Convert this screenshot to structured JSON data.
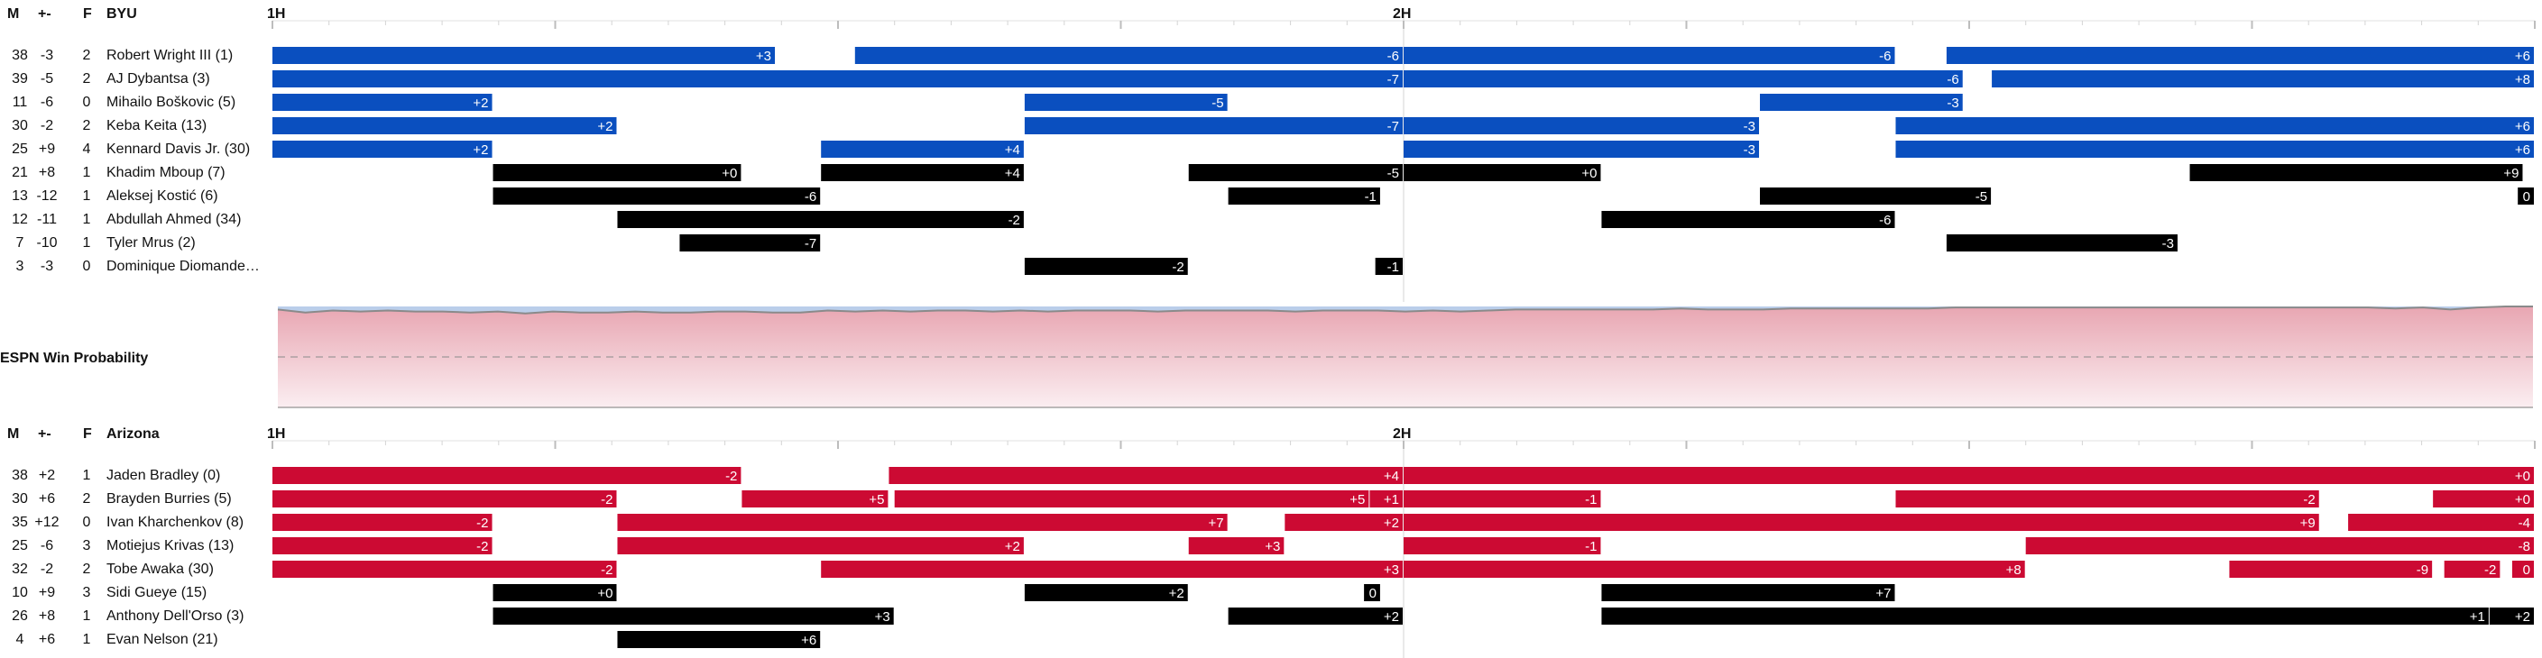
{
  "chart_data": {
    "type": "player-stint-timeline",
    "periods": [
      "1H",
      "2H"
    ],
    "axis": {
      "minutes_total": 40,
      "half_length": 20
    },
    "columns": {
      "minutes": "M",
      "plus_minus": "+-",
      "fouls": "F"
    },
    "colors": {
      "BYU": "#0a4fbf",
      "Arizona": "#cc0a33",
      "bench": "#000000",
      "wp_blue": "#c5d6ee",
      "wp_red": "#e8a6b2",
      "wp_line": "#8a8a8a"
    },
    "win_probability": {
      "label": "ESPN Win Probability",
      "arizona_prob": [
        0.97,
        0.94,
        0.96,
        0.95,
        0.96,
        0.95,
        0.95,
        0.94,
        0.95,
        0.93,
        0.95,
        0.94,
        0.94,
        0.95,
        0.94,
        0.94,
        0.95,
        0.95,
        0.94,
        0.94,
        0.96,
        0.95,
        0.96,
        0.95,
        0.96,
        0.96,
        0.95,
        0.96,
        0.95,
        0.96,
        0.96,
        0.96,
        0.95,
        0.96,
        0.96,
        0.96,
        0.96,
        0.95,
        0.96,
        0.96,
        0.96,
        0.95,
        0.96,
        0.95,
        0.96,
        0.97,
        0.97,
        0.97,
        0.97,
        0.97,
        0.97,
        0.98,
        0.97,
        0.97,
        0.97,
        0.98,
        0.98,
        0.98,
        0.98,
        0.98,
        0.98,
        0.99,
        0.99,
        0.99,
        0.99,
        0.99,
        0.99,
        0.99,
        0.99,
        0.99,
        0.99,
        0.99,
        0.99,
        0.99,
        0.99,
        0.99,
        0.99,
        0.98,
        0.99,
        0.97,
        0.99,
        1.0,
        1.0
      ]
    },
    "teams": [
      {
        "name": "BYU",
        "color": "#0a4fbf",
        "players": [
          {
            "name": "Robert Wright III (1)",
            "m": "38",
            "pm": "-3",
            "f": "2",
            "stints": [
              {
                "start": 0,
                "end": 8.9,
                "label": "+3",
                "color": "team"
              },
              {
                "start": 10.3,
                "end": 20,
                "label": "-6",
                "color": "team"
              },
              {
                "start": 20,
                "end": 28.7,
                "label": "-6",
                "color": "team"
              },
              {
                "start": 29.6,
                "end": 40,
                "label": "+6",
                "color": "team"
              }
            ]
          },
          {
            "name": "AJ Dybantsa (3)",
            "m": "39",
            "pe": "",
            "pm": "-5",
            "f": "2",
            "stints": [
              {
                "start": 0,
                "end": 20,
                "label": "-7",
                "color": "team"
              },
              {
                "start": 20,
                "end": 29.9,
                "label": "-6",
                "color": "team"
              },
              {
                "start": 30.4,
                "end": 40,
                "label": "+8",
                "color": "team"
              }
            ]
          },
          {
            "name": "Mihailo Boškovic (5)",
            "m": "11",
            "pm": "-6",
            "f": "0",
            "stints": [
              {
                "start": 0,
                "end": 3.9,
                "label": "+2",
                "color": "team"
              },
              {
                "start": 13.3,
                "end": 16.9,
                "label": "-5",
                "color": "team"
              },
              {
                "start": 26.3,
                "end": 29.9,
                "label": "-3",
                "color": "team"
              }
            ]
          },
          {
            "name": "Keba Keita (13)",
            "m": "30",
            "pm": "-2",
            "f": "2",
            "stints": [
              {
                "start": 0,
                "end": 6.1,
                "label": "+2",
                "color": "team"
              },
              {
                "start": 13.3,
                "end": 20,
                "label": "-7",
                "color": "team"
              },
              {
                "start": 20,
                "end": 26.3,
                "label": "-3",
                "color": "team"
              },
              {
                "start": 28.7,
                "end": 40,
                "label": "+6",
                "color": "team"
              }
            ]
          },
          {
            "name": "Kennard Davis Jr. (30)",
            "m": "25",
            "pm": "+9",
            "f": "4",
            "stints": [
              {
                "start": 0,
                "end": 3.9,
                "label": "+2",
                "color": "team"
              },
              {
                "start": 9.7,
                "end": 13.3,
                "label": "+4",
                "color": "team"
              },
              {
                "start": 20,
                "end": 26.3,
                "label": "-3",
                "color": "team"
              },
              {
                "start": 28.7,
                "end": 40,
                "label": "+6",
                "color": "team"
              }
            ]
          },
          {
            "name": "Khadim Mboup (7)",
            "m": "21",
            "pm": "+8",
            "f": "1",
            "stints": [
              {
                "start": 3.9,
                "end": 8.3,
                "label": "+0",
                "color": "bench"
              },
              {
                "start": 9.7,
                "end": 13.3,
                "label": "+4",
                "color": "bench"
              },
              {
                "start": 16.2,
                "end": 20,
                "label": "-5",
                "color": "bench"
              },
              {
                "start": 20,
                "end": 23.5,
                "label": "+0",
                "color": "bench"
              },
              {
                "start": 33.9,
                "end": 39.8,
                "label": "+9",
                "color": "bench"
              }
            ]
          },
          {
            "name": "Aleksej Kostić (6)",
            "m": "13",
            "pm": "-12",
            "f": "1",
            "stints": [
              {
                "start": 3.9,
                "end": 9.7,
                "label": "-6",
                "color": "bench"
              },
              {
                "start": 16.9,
                "end": 19.6,
                "label": "-1",
                "color": "bench"
              },
              {
                "start": 26.3,
                "end": 30.4,
                "label": "-5",
                "color": "bench"
              },
              {
                "start": 39.7,
                "end": 40,
                "label": "0",
                "color": "bench"
              }
            ]
          },
          {
            "name": "Abdullah Ahmed (34)",
            "m": "12",
            "pm": "-11",
            "f": "1",
            "stints": [
              {
                "start": 6.1,
                "end": 13.3,
                "label": "-2",
                "color": "bench"
              },
              {
                "start": 23.5,
                "end": 28.7,
                "label": "-6",
                "color": "bench"
              }
            ]
          },
          {
            "name": "Tyler Mrus (2)",
            "m": "7",
            "pm": "-10",
            "f": "1",
            "stints": [
              {
                "start": 7.2,
                "end": 9.7,
                "label": "-7",
                "color": "bench"
              },
              {
                "start": 29.6,
                "end": 33.7,
                "label": "-3",
                "color": "bench"
              }
            ]
          },
          {
            "name": "Dominique Diomande…",
            "m": "3",
            "pm": "-3",
            "f": "0",
            "stints": [
              {
                "start": 13.3,
                "end": 16.2,
                "label": "-2",
                "color": "bench"
              },
              {
                "start": 19.5,
                "end": 20,
                "label": "-1",
                "color": "bench"
              }
            ]
          }
        ]
      },
      {
        "name": "Arizona",
        "color": "#cc0a33",
        "players": [
          {
            "name": "Jaden Bradley (0)",
            "m": "38",
            "pm": "+2",
            "f": "1",
            "stints": [
              {
                "start": 0,
                "end": 8.3,
                "label": "-2",
                "color": "team"
              },
              {
                "start": 10.9,
                "end": 20,
                "label": "+4",
                "color": "team"
              },
              {
                "start": 20,
                "end": 40,
                "label": "+0",
                "color": "team"
              }
            ]
          },
          {
            "name": "Brayden Burries (5)",
            "m": "30",
            "pe": "",
            "pm": "+6",
            "f": "2",
            "stints": [
              {
                "start": 0,
                "end": 6.1,
                "label": "-2",
                "color": "team"
              },
              {
                "start": 8.3,
                "end": 10.9,
                "label": "+5",
                "color": "team"
              },
              {
                "start": 11.0,
                "end": 19.4,
                "label": "+5",
                "color": "team"
              },
              {
                "start": 19.4,
                "end": 20,
                "label": "+1",
                "color": "team"
              },
              {
                "start": 20,
                "end": 23.5,
                "label": "-1",
                "color": "team"
              },
              {
                "start": 28.7,
                "end": 36.2,
                "label": "-2",
                "color": "team"
              },
              {
                "start": 38.2,
                "end": 40,
                "label": "+0",
                "color": "team"
              }
            ]
          },
          {
            "name": "Ivan Kharchenkov (8)",
            "m": "35",
            "pm": "+12",
            "f": "0",
            "stints": [
              {
                "start": 0,
                "end": 3.9,
                "label": "-2",
                "color": "team"
              },
              {
                "start": 6.1,
                "end": 16.9,
                "label": "+7",
                "color": "team"
              },
              {
                "start": 17.9,
                "end": 20,
                "label": "+2",
                "color": "team"
              },
              {
                "start": 20,
                "end": 36.2,
                "label": "+9",
                "color": "team"
              },
              {
                "start": 36.7,
                "end": 40,
                "label": "-4",
                "color": "team"
              }
            ]
          },
          {
            "name": "Motiejus Krivas (13)",
            "m": "25",
            "pm": "-6",
            "f": "3",
            "stints": [
              {
                "start": 0,
                "end": 3.9,
                "label": "-2",
                "color": "team"
              },
              {
                "start": 6.1,
                "end": 13.3,
                "label": "+2",
                "color": "team"
              },
              {
                "start": 16.2,
                "end": 17.9,
                "label": "+3",
                "color": "team"
              },
              {
                "start": 20,
                "end": 23.5,
                "label": "-1",
                "color": "team"
              },
              {
                "start": 31.0,
                "end": 40,
                "label": "-8",
                "color": "team"
              }
            ]
          },
          {
            "name": "Tobe Awaka (30)",
            "m": "32",
            "pm": "-2",
            "f": "2",
            "stints": [
              {
                "start": 0,
                "end": 6.1,
                "label": "-2",
                "color": "team"
              },
              {
                "start": 9.7,
                "end": 20,
                "label": "+3",
                "color": "team"
              },
              {
                "start": 20,
                "end": 31.0,
                "label": "+8",
                "color": "team"
              },
              {
                "start": 34.6,
                "end": 38.2,
                "label": "-9",
                "color": "team"
              },
              {
                "start": 38.4,
                "end": 39.4,
                "label": "-2",
                "color": "team"
              },
              {
                "start": 39.6,
                "end": 40,
                "label": "0",
                "color": "team"
              }
            ]
          },
          {
            "name": "Sidi Gueye (15)",
            "m": "10",
            "pm": "+9",
            "f": "3",
            "stints": [
              {
                "start": 3.9,
                "end": 6.1,
                "label": "+0",
                "color": "bench"
              },
              {
                "start": 13.3,
                "end": 16.2,
                "label": "+2",
                "color": "bench"
              },
              {
                "start": 19.3,
                "end": 19.6,
                "label": "0",
                "color": "bench"
              },
              {
                "start": 23.5,
                "end": 28.7,
                "label": "+7",
                "color": "bench"
              }
            ]
          },
          {
            "name": "Anthony Dell'Orso (3)",
            "m": "26",
            "pm": "+8",
            "f": "1",
            "stints": [
              {
                "start": 3.9,
                "end": 11.0,
                "label": "+3",
                "color": "bench"
              },
              {
                "start": 16.9,
                "end": 20,
                "label": "+2",
                "color": "bench"
              },
              {
                "start": 23.5,
                "end": 39.2,
                "label": "+1",
                "color": "bench"
              },
              {
                "start": 39.2,
                "end": 40,
                "label": "+2",
                "color": "bench"
              }
            ]
          },
          {
            "name": "Evan Nelson (21)",
            "m": "4",
            "pm": "+6",
            "f": "1",
            "stints": [
              {
                "start": 6.1,
                "end": 9.7,
                "label": "+6",
                "color": "bench"
              }
            ]
          }
        ]
      }
    ]
  }
}
